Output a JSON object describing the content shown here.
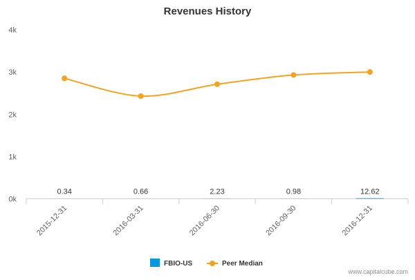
{
  "chart_data": {
    "type": "line",
    "title": "Revenues History",
    "categories": [
      "2015-12-31",
      "2016-03-31",
      "2016-06-30",
      "2016-09-30",
      "2016-12-31"
    ],
    "ylim": [
      0,
      4000
    ],
    "yticks": [
      0,
      1000,
      2000,
      3000,
      4000
    ],
    "ytick_labels": [
      "0k",
      "1k",
      "2k",
      "3k",
      "4k"
    ],
    "grid": false,
    "series": [
      {
        "name": "FBIO-US",
        "type": "bar",
        "color": "#0099e6",
        "values": [
          0.34,
          0.66,
          2.23,
          0.98,
          12.62
        ],
        "data_labels": [
          "0.34",
          "0.66",
          "2.23",
          "0.98",
          "12.62"
        ]
      },
      {
        "name": "Peer Median",
        "type": "line",
        "color": "#f7a21b",
        "values": [
          2850,
          2430,
          2710,
          2930,
          3000
        ]
      }
    ],
    "legend_position": "bottom-center"
  },
  "credit": "www.capitalcube.com"
}
